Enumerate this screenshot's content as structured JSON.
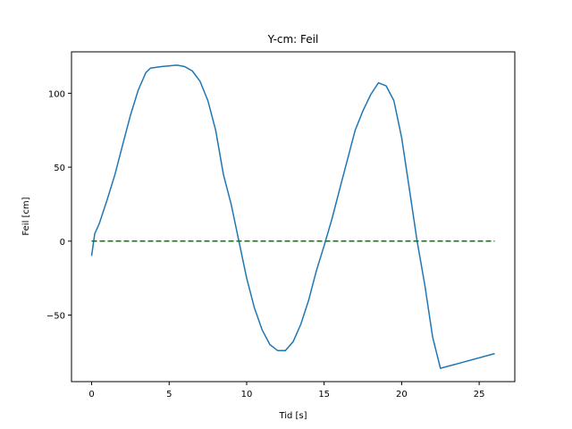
{
  "chart_data": {
    "type": "line",
    "title": "Y-cm: Feil",
    "xlabel": "Tid [s]",
    "ylabel": "Feil [cm]",
    "xlim": [
      -1.3,
      27.3
    ],
    "ylim": [
      -95,
      128
    ],
    "grid": false,
    "x_ticks": [
      0,
      5,
      10,
      15,
      20,
      25
    ],
    "x_tick_labels": [
      "0",
      "5",
      "10",
      "15",
      "20",
      "25"
    ],
    "y_ticks": [
      -50,
      0,
      50,
      100
    ],
    "y_tick_labels": [
      "−50",
      "0",
      "50",
      "100"
    ],
    "series": [
      {
        "color": "#1f77b4",
        "style": "solid",
        "x": [
          0,
          0.2,
          0.5,
          1.0,
          1.5,
          2.0,
          2.5,
          3.0,
          3.5,
          3.8,
          4.5,
          5.5,
          6.0,
          6.5,
          7.0,
          7.5,
          8.0,
          8.5,
          9.0,
          9.5,
          10.0,
          10.5,
          11.0,
          11.5,
          12.0,
          12.5,
          13.0,
          13.5,
          14.0,
          14.5,
          15.0,
          15.5,
          16.0,
          16.5,
          17.0,
          17.5,
          18.0,
          18.5,
          19.0,
          19.5,
          20.0,
          20.5,
          21.0,
          21.5,
          22.0,
          22.5,
          26.0
        ],
        "y": [
          -10,
          5,
          12,
          28,
          45,
          65,
          85,
          102,
          114,
          117,
          118,
          119,
          118,
          115,
          108,
          95,
          75,
          45,
          25,
          0,
          -25,
          -45,
          -60,
          -70,
          -74,
          -74,
          -68,
          -56,
          -40,
          -20,
          -3,
          15,
          35,
          55,
          75,
          88,
          99,
          107,
          105,
          95,
          70,
          35,
          0,
          -30,
          -65,
          -86,
          -76
        ]
      },
      {
        "color": "#008000",
        "style": "dashed",
        "x": [
          0,
          26
        ],
        "y": [
          0,
          0
        ]
      }
    ]
  }
}
